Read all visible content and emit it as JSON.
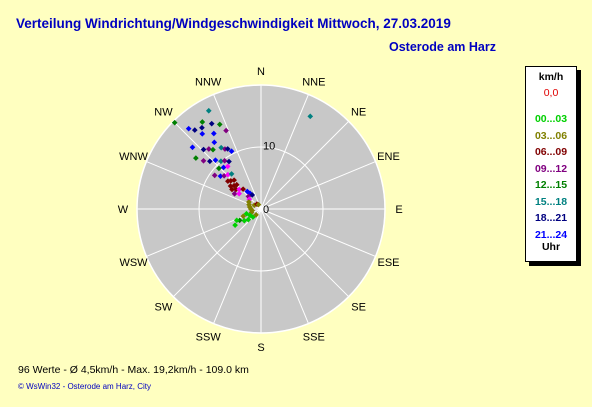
{
  "header": {
    "title": "Verteilung Windrichtung/Windgeschwindigkeit  Mittwoch, 27.03.2019",
    "station": "Osterode am Harz"
  },
  "legend": {
    "unit": "km/h",
    "current_value": "0,0",
    "current_color": "#e00000",
    "entries": [
      {
        "label": "00...03",
        "color": "#00d000"
      },
      {
        "label": "03...06",
        "color": "#808000"
      },
      {
        "label": "06...09",
        "color": "#800000"
      },
      {
        "label": "09...12",
        "color": "#800080"
      },
      {
        "label": "12...15",
        "color": "#008000"
      },
      {
        "label": "15...18",
        "color": "#008080"
      },
      {
        "label": "18...21",
        "color": "#000080"
      },
      {
        "label": "21...24",
        "color": "#0000ff"
      }
    ],
    "footer_label": "Uhr"
  },
  "footer": {
    "stats": "96 Werte   -   Ø 4,5km/h   -   Max. 19,2km/h   -   109.0 km",
    "copyright": "© WsWin32  -  Osterode am Harz, City"
  },
  "chart_data": {
    "type": "scatter",
    "subtype": "polar",
    "direction_labels": [
      "N",
      "NNE",
      "NE",
      "ENE",
      "E",
      "ESE",
      "SE",
      "SSE",
      "S",
      "SSW",
      "SW",
      "WSW",
      "W",
      "WNW",
      "NW",
      "NNW"
    ],
    "radial_ticks": [
      {
        "value": 0,
        "label": "0"
      },
      {
        "value": 10,
        "label": "10"
      }
    ],
    "radial_max": 19.5,
    "grid": true,
    "note": "points: direction in compass degrees, speed in km/h, color = time-of-day bin from legend",
    "points": [
      {
        "dir": 315,
        "speed": 19.2,
        "color": "#008000"
      },
      {
        "dir": 318,
        "speed": 17.0,
        "color": "#0000ff"
      },
      {
        "dir": 320,
        "speed": 16.2,
        "color": "#000080"
      },
      {
        "dir": 322,
        "speed": 15.0,
        "color": "#0000ff"
      },
      {
        "dir": 324,
        "speed": 15.8,
        "color": "#000080"
      },
      {
        "dir": 326,
        "speed": 16.5,
        "color": "#008000"
      },
      {
        "dir": 328,
        "speed": 14.0,
        "color": "#0000ff"
      },
      {
        "dir": 330,
        "speed": 15.5,
        "color": "#000080"
      },
      {
        "dir": 332,
        "speed": 17.5,
        "color": "#008080"
      },
      {
        "dir": 334,
        "speed": 14.8,
        "color": "#008000"
      },
      {
        "dir": 336,
        "speed": 13.5,
        "color": "#800080"
      },
      {
        "dir": 312,
        "speed": 14.5,
        "color": "#0000ff"
      },
      {
        "dir": 316,
        "speed": 13.0,
        "color": "#000080"
      },
      {
        "dir": 319,
        "speed": 12.5,
        "color": "#800080"
      },
      {
        "dir": 321,
        "speed": 12.0,
        "color": "#008000"
      },
      {
        "dir": 325,
        "speed": 12.8,
        "color": "#0000ff"
      },
      {
        "dir": 327,
        "speed": 11.5,
        "color": "#008080"
      },
      {
        "dir": 329,
        "speed": 11.0,
        "color": "#800080"
      },
      {
        "dir": 331,
        "speed": 10.8,
        "color": "#000080"
      },
      {
        "dir": 333,
        "speed": 10.2,
        "color": "#0000ff"
      },
      {
        "dir": 308,
        "speed": 13.0,
        "color": "#008000"
      },
      {
        "dir": 310,
        "speed": 11.8,
        "color": "#800080"
      },
      {
        "dir": 313,
        "speed": 11.0,
        "color": "#000080"
      },
      {
        "dir": 317,
        "speed": 10.5,
        "color": "#0000ff"
      },
      {
        "dir": 320,
        "speed": 9.8,
        "color": "#008080"
      },
      {
        "dir": 323,
        "speed": 9.5,
        "color": "#800080"
      },
      {
        "dir": 326,
        "speed": 9.0,
        "color": "#000080"
      },
      {
        "dir": 314,
        "speed": 9.2,
        "color": "#008000"
      },
      {
        "dir": 318,
        "speed": 8.8,
        "color": "#0000ff"
      },
      {
        "dir": 322,
        "speed": 8.5,
        "color": "#ff00ff"
      },
      {
        "dir": 306,
        "speed": 9.0,
        "color": "#800080"
      },
      {
        "dir": 309,
        "speed": 8.2,
        "color": "#0000ff"
      },
      {
        "dir": 312,
        "speed": 7.8,
        "color": "#800080"
      },
      {
        "dir": 316,
        "speed": 7.5,
        "color": "#ff00ff"
      },
      {
        "dir": 320,
        "speed": 7.2,
        "color": "#008080"
      },
      {
        "dir": 310,
        "speed": 6.8,
        "color": "#800000"
      },
      {
        "dir": 313,
        "speed": 6.5,
        "color": "#800000"
      },
      {
        "dir": 317,
        "speed": 6.2,
        "color": "#800000"
      },
      {
        "dir": 307,
        "speed": 6.0,
        "color": "#800000"
      },
      {
        "dir": 311,
        "speed": 5.6,
        "color": "#800000"
      },
      {
        "dir": 315,
        "speed": 5.4,
        "color": "#800000"
      },
      {
        "dir": 304,
        "speed": 5.5,
        "color": "#800000"
      },
      {
        "dir": 308,
        "speed": 5.0,
        "color": "#800000"
      },
      {
        "dir": 312,
        "speed": 4.6,
        "color": "#ff00ff"
      },
      {
        "dir": 300,
        "speed": 4.8,
        "color": "#800080"
      },
      {
        "dir": 305,
        "speed": 4.2,
        "color": "#ff00ff"
      },
      {
        "dir": 318,
        "speed": 4.2,
        "color": "#800000"
      },
      {
        "dir": 322,
        "speed": 3.5,
        "color": "#0000ff"
      },
      {
        "dir": 325,
        "speed": 3.0,
        "color": "#0000ff"
      },
      {
        "dir": 328,
        "speed": 2.6,
        "color": "#000080"
      },
      {
        "dir": 315,
        "speed": 2.8,
        "color": "#800080"
      },
      {
        "dir": 310,
        "speed": 2.4,
        "color": "#ff00ff"
      },
      {
        "dir": 300,
        "speed": 2.2,
        "color": "#808000"
      },
      {
        "dir": 290,
        "speed": 2.0,
        "color": "#808000"
      },
      {
        "dir": 280,
        "speed": 1.8,
        "color": "#808000"
      },
      {
        "dir": 270,
        "speed": 1.6,
        "color": "#808000"
      },
      {
        "dir": 260,
        "speed": 1.4,
        "color": "#808000"
      },
      {
        "dir": 250,
        "speed": 1.6,
        "color": "#808000"
      },
      {
        "dir": 240,
        "speed": 2.0,
        "color": "#00d000"
      },
      {
        "dir": 235,
        "speed": 3.2,
        "color": "#00d000"
      },
      {
        "dir": 238,
        "speed": 4.8,
        "color": "#00d000"
      },
      {
        "dir": 242,
        "speed": 3.8,
        "color": "#008000"
      },
      {
        "dir": 245,
        "speed": 4.2,
        "color": "#00d000"
      },
      {
        "dir": 248,
        "speed": 3.0,
        "color": "#808000"
      },
      {
        "dir": 252,
        "speed": 2.4,
        "color": "#00d000"
      },
      {
        "dir": 230,
        "speed": 2.6,
        "color": "#00d000"
      },
      {
        "dir": 225,
        "speed": 1.8,
        "color": "#00d000"
      },
      {
        "dir": 220,
        "speed": 1.2,
        "color": "#808000"
      },
      {
        "dir": 300,
        "speed": 1.2,
        "color": "#808000"
      },
      {
        "dir": 320,
        "speed": 1.0,
        "color": "#800000"
      },
      {
        "dir": 330,
        "speed": 0.8,
        "color": "#808000"
      },
      {
        "dir": 28,
        "speed": 16.5,
        "color": "#008080"
      }
    ]
  }
}
